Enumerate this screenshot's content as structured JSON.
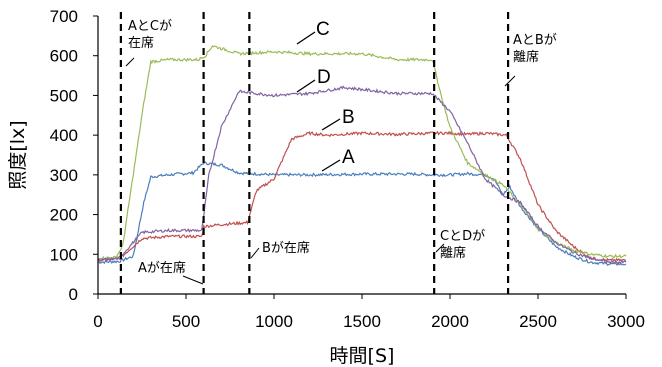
{
  "chart_data": {
    "type": "line",
    "xlabel": "時間[S]",
    "ylabel": "照度[lx]",
    "xlim": [
      0,
      3000
    ],
    "ylim": [
      0,
      700
    ],
    "x_ticks": [
      "0",
      "500",
      "1000",
      "1500",
      "2000",
      "2500",
      "3000"
    ],
    "y_ticks": [
      "0",
      "100",
      "200",
      "300",
      "400",
      "500",
      "600",
      "700"
    ],
    "grid": false,
    "series": [
      {
        "name": "A",
        "color": "#4a7ebb",
        "points": [
          [
            0,
            80
          ],
          [
            120,
            82
          ],
          [
            200,
            95
          ],
          [
            260,
            230
          ],
          [
            300,
            295
          ],
          [
            400,
            300
          ],
          [
            540,
            305
          ],
          [
            600,
            330
          ],
          [
            700,
            325
          ],
          [
            800,
            305
          ],
          [
            1000,
            300
          ],
          [
            1200,
            300
          ],
          [
            1500,
            302
          ],
          [
            1800,
            302
          ],
          [
            1900,
            300
          ],
          [
            2000,
            300
          ],
          [
            2100,
            303
          ],
          [
            2200,
            300
          ],
          [
            2250,
            290
          ],
          [
            2300,
            250
          ],
          [
            2340,
            270
          ],
          [
            2400,
            220
          ],
          [
            2500,
            165
          ],
          [
            2600,
            120
          ],
          [
            2700,
            95
          ],
          [
            2800,
            80
          ],
          [
            2900,
            76
          ],
          [
            3000,
            75
          ]
        ]
      },
      {
        "name": "B",
        "color": "#c0504d",
        "points": [
          [
            0,
            85
          ],
          [
            120,
            88
          ],
          [
            250,
            140
          ],
          [
            400,
            145
          ],
          [
            590,
            145
          ],
          [
            600,
            170
          ],
          [
            700,
            175
          ],
          [
            850,
            180
          ],
          [
            900,
            260
          ],
          [
            1000,
            290
          ],
          [
            1100,
            390
          ],
          [
            1200,
            405
          ],
          [
            1300,
            400
          ],
          [
            1500,
            405
          ],
          [
            1700,
            402
          ],
          [
            1900,
            405
          ],
          [
            2000,
            405
          ],
          [
            2100,
            402
          ],
          [
            2200,
            405
          ],
          [
            2320,
            400
          ],
          [
            2400,
            340
          ],
          [
            2500,
            225
          ],
          [
            2600,
            160
          ],
          [
            2700,
            120
          ],
          [
            2800,
            90
          ],
          [
            2900,
            85
          ],
          [
            3000,
            85
          ]
        ]
      },
      {
        "name": "C",
        "color": "#9bbb59",
        "points": [
          [
            0,
            90
          ],
          [
            100,
            92
          ],
          [
            140,
            120
          ],
          [
            200,
            300
          ],
          [
            260,
            480
          ],
          [
            300,
            585
          ],
          [
            400,
            590
          ],
          [
            570,
            590
          ],
          [
            610,
            600
          ],
          [
            650,
            625
          ],
          [
            800,
            605
          ],
          [
            1000,
            610
          ],
          [
            1200,
            605
          ],
          [
            1500,
            605
          ],
          [
            1700,
            590
          ],
          [
            1900,
            590
          ],
          [
            1950,
            500
          ],
          [
            2000,
            420
          ],
          [
            2100,
            330
          ],
          [
            2200,
            300
          ],
          [
            2300,
            275
          ],
          [
            2400,
            225
          ],
          [
            2500,
            165
          ],
          [
            2600,
            130
          ],
          [
            2700,
            110
          ],
          [
            2800,
            100
          ],
          [
            2900,
            95
          ],
          [
            3000,
            95
          ]
        ]
      },
      {
        "name": "D",
        "color": "#8064a2",
        "points": [
          [
            0,
            85
          ],
          [
            120,
            90
          ],
          [
            250,
            155
          ],
          [
            400,
            160
          ],
          [
            590,
            160
          ],
          [
            630,
            300
          ],
          [
            700,
            420
          ],
          [
            800,
            510
          ],
          [
            900,
            505
          ],
          [
            1000,
            500
          ],
          [
            1200,
            505
          ],
          [
            1400,
            520
          ],
          [
            1500,
            515
          ],
          [
            1700,
            505
          ],
          [
            1900,
            505
          ],
          [
            2000,
            460
          ],
          [
            2100,
            380
          ],
          [
            2200,
            290
          ],
          [
            2300,
            250
          ],
          [
            2400,
            230
          ],
          [
            2500,
            170
          ],
          [
            2600,
            130
          ],
          [
            2700,
            105
          ],
          [
            2800,
            90
          ],
          [
            2900,
            80
          ],
          [
            3000,
            80
          ]
        ]
      }
    ],
    "event_lines": [
      130,
      600,
      860,
      1910,
      2330
    ],
    "annotations": [
      {
        "lines": [
          "AとCが",
          "在席"
        ],
        "x_at": 130
      },
      {
        "lines": [
          "Aが在席"
        ],
        "x_at": 600
      },
      {
        "lines": [
          "Bが在席"
        ],
        "x_at": 860
      },
      {
        "lines": [
          "CとDが",
          "離席"
        ],
        "x_at": 1910
      },
      {
        "lines": [
          "AとBが",
          "離席"
        ],
        "x_at": 2330
      }
    ]
  }
}
